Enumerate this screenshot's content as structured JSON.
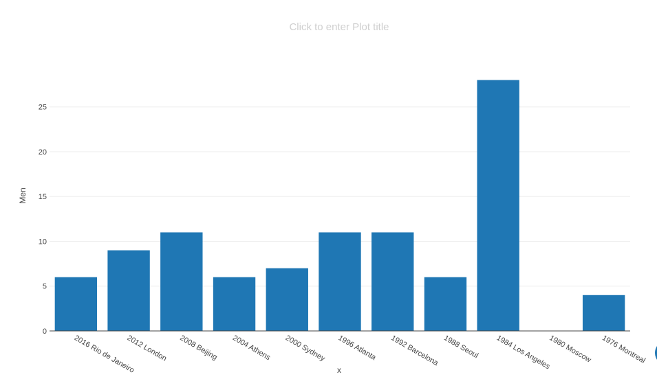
{
  "title_placeholder": "Click to enter Plot title",
  "colors": {
    "bar": "#1f77b4",
    "grid": "#eeeeee",
    "axis": "#444444",
    "title": "#cfcfcf"
  },
  "chart_data": {
    "type": "bar",
    "title": "",
    "xlabel": "x",
    "ylabel": "Men",
    "categories": [
      "2016 Rio de Janeiro",
      "2012 London",
      "2008 Beijing",
      "2004 Athens",
      "2000 Sydney",
      "1996 Atlanta",
      "1992 Barcelona",
      "1988 Seoul",
      "1984 Los Angeles",
      "1980 Moscow",
      "1976 Montreal"
    ],
    "values": [
      6,
      9,
      11,
      6,
      7,
      11,
      11,
      6,
      28,
      0,
      4
    ],
    "ylim": [
      0,
      29.5
    ],
    "yticks": [
      0,
      5,
      10,
      15,
      20,
      25
    ],
    "grid": true,
    "legend": "none"
  }
}
